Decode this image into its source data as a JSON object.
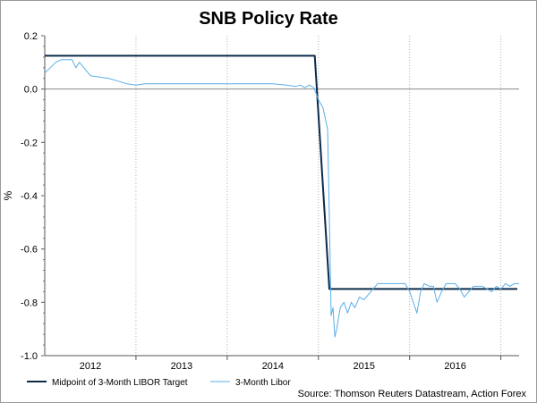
{
  "chart_data": {
    "type": "line",
    "title": "SNB Policy Rate",
    "xlabel": "",
    "ylabel": "%",
    "ylim": [
      -1.0,
      0.2
    ],
    "xlim": [
      2011.5,
      2016.7
    ],
    "y_ticks": [
      0.2,
      0.0,
      -0.2,
      -0.4,
      -0.6,
      -0.8,
      -1.0
    ],
    "y_tick_labels": [
      "0.2",
      "0.0",
      "-0.2",
      "-0.4",
      "-0.6",
      "-0.8",
      "-1.0"
    ],
    "x_labels": [
      {
        "label": "2012",
        "x": 2012.0
      },
      {
        "label": "2013",
        "x": 2013.0
      },
      {
        "label": "2014",
        "x": 2014.0
      },
      {
        "label": "2015",
        "x": 2015.0
      },
      {
        "label": "2016",
        "x": 2016.0
      }
    ],
    "x_boundaries": [
      2012.5,
      2013.5,
      2014.5,
      2015.5,
      2016.5
    ],
    "grid": "vertical",
    "legend": "bottom-left",
    "source": "Source: Thomson Reuters Datastream, Action Forex",
    "series": [
      {
        "name": "Midpoint of 3-Month LIBOR Target",
        "color": "#0b2a4a",
        "points": [
          [
            2011.5,
            0.125
          ],
          [
            2014.46,
            0.125
          ],
          [
            2014.62,
            -0.75
          ],
          [
            2016.68,
            -0.75
          ]
        ]
      },
      {
        "name": "3-Month Libor",
        "color": "#5aaee8",
        "points": [
          [
            2011.5,
            0.06
          ],
          [
            2011.56,
            0.08
          ],
          [
            2011.62,
            0.1
          ],
          [
            2011.68,
            0.11
          ],
          [
            2011.74,
            0.11
          ],
          [
            2011.8,
            0.11
          ],
          [
            2011.84,
            0.08
          ],
          [
            2011.88,
            0.1
          ],
          [
            2011.93,
            0.08
          ],
          [
            2012.0,
            0.05
          ],
          [
            2012.1,
            0.045
          ],
          [
            2012.2,
            0.04
          ],
          [
            2012.3,
            0.03
          ],
          [
            2012.4,
            0.02
          ],
          [
            2012.5,
            0.015
          ],
          [
            2012.6,
            0.02
          ],
          [
            2012.8,
            0.02
          ],
          [
            2013.0,
            0.02
          ],
          [
            2013.2,
            0.02
          ],
          [
            2013.4,
            0.02
          ],
          [
            2013.6,
            0.02
          ],
          [
            2013.8,
            0.02
          ],
          [
            2014.0,
            0.02
          ],
          [
            2014.15,
            0.015
          ],
          [
            2014.25,
            0.01
          ],
          [
            2014.3,
            0.015
          ],
          [
            2014.35,
            0.005
          ],
          [
            2014.4,
            0.015
          ],
          [
            2014.45,
            0.005
          ],
          [
            2014.5,
            -0.04
          ],
          [
            2014.55,
            -0.07
          ],
          [
            2014.6,
            -0.15
          ],
          [
            2014.62,
            -0.48
          ],
          [
            2014.64,
            -0.85
          ],
          [
            2014.66,
            -0.82
          ],
          [
            2014.68,
            -0.93
          ],
          [
            2014.7,
            -0.9
          ],
          [
            2014.74,
            -0.82
          ],
          [
            2014.78,
            -0.8
          ],
          [
            2014.82,
            -0.84
          ],
          [
            2014.86,
            -0.8
          ],
          [
            2014.9,
            -0.82
          ],
          [
            2014.95,
            -0.78
          ],
          [
            2015.0,
            -0.79
          ],
          [
            2015.05,
            -0.77
          ],
          [
            2015.1,
            -0.75
          ],
          [
            2015.15,
            -0.73
          ],
          [
            2015.2,
            -0.73
          ],
          [
            2015.3,
            -0.73
          ],
          [
            2015.4,
            -0.73
          ],
          [
            2015.45,
            -0.73
          ],
          [
            2015.5,
            -0.76
          ],
          [
            2015.55,
            -0.81
          ],
          [
            2015.58,
            -0.84
          ],
          [
            2015.62,
            -0.76
          ],
          [
            2015.66,
            -0.73
          ],
          [
            2015.72,
            -0.74
          ],
          [
            2015.76,
            -0.74
          ],
          [
            2015.8,
            -0.8
          ],
          [
            2015.85,
            -0.76
          ],
          [
            2015.9,
            -0.73
          ],
          [
            2016.0,
            -0.73
          ],
          [
            2016.05,
            -0.75
          ],
          [
            2016.1,
            -0.78
          ],
          [
            2016.15,
            -0.76
          ],
          [
            2016.2,
            -0.74
          ],
          [
            2016.3,
            -0.74
          ],
          [
            2016.35,
            -0.75
          ],
          [
            2016.4,
            -0.76
          ],
          [
            2016.45,
            -0.74
          ],
          [
            2016.5,
            -0.75
          ],
          [
            2016.55,
            -0.73
          ],
          [
            2016.6,
            -0.74
          ],
          [
            2016.65,
            -0.73
          ],
          [
            2016.7,
            -0.73
          ]
        ]
      }
    ]
  }
}
